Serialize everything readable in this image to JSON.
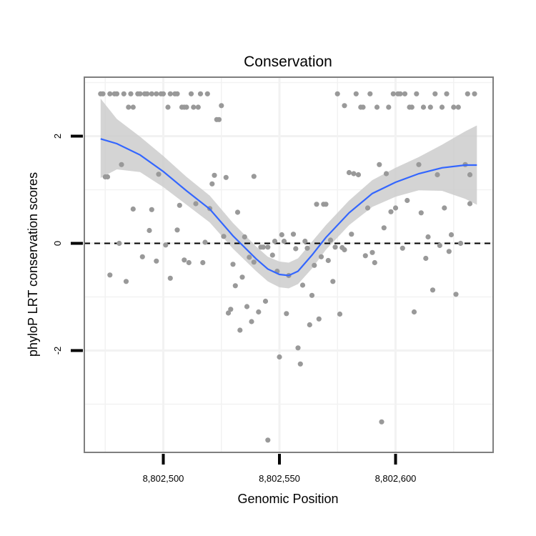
{
  "chart_data": {
    "type": "scatter",
    "title": "Conservation",
    "xlabel": "Genomic Position",
    "ylabel": "phyloP LRT conservation scores",
    "xlim": [
      8802466,
      8802642
    ],
    "ylim": [
      -3.9,
      3.1
    ],
    "x_ticks": [
      8802500,
      8802550,
      8802600
    ],
    "x_tick_labels": [
      "8,802,500",
      "8,802,550",
      "8,802,600"
    ],
    "y_ticks": [
      2,
      0,
      -2
    ],
    "y_tick_labels": [
      "2",
      "0",
      "-2"
    ],
    "grid": true,
    "reference_line": {
      "y": 0,
      "style": "dashed",
      "color": "#000000"
    },
    "colors": {
      "points": "#999999",
      "smooth_line": "#3366FF",
      "confidence_band": "#CCCCCC",
      "grid": "#F2F2F2",
      "panel_border": "#7F7F7F"
    },
    "points": [
      {
        "x": 8802473,
        "y": 2.79
      },
      {
        "x": 8802474,
        "y": 2.79
      },
      {
        "x": 8802475,
        "y": 1.24
      },
      {
        "x": 8802476,
        "y": 1.24
      },
      {
        "x": 8802477,
        "y": 2.79
      },
      {
        "x": 8802477,
        "y": -0.59
      },
      {
        "x": 8802479,
        "y": 2.79
      },
      {
        "x": 8802480,
        "y": 2.79
      },
      {
        "x": 8802481,
        "y": 0.0
      },
      {
        "x": 8802482,
        "y": 1.47
      },
      {
        "x": 8802483,
        "y": 2.79
      },
      {
        "x": 8802484,
        "y": -0.71
      },
      {
        "x": 8802485,
        "y": 2.54
      },
      {
        "x": 8802486,
        "y": 2.79
      },
      {
        "x": 8802487,
        "y": 2.54
      },
      {
        "x": 8802487,
        "y": 0.64
      },
      {
        "x": 8802489,
        "y": 2.79
      },
      {
        "x": 8802490,
        "y": 2.79
      },
      {
        "x": 8802491,
        "y": -0.25
      },
      {
        "x": 8802492,
        "y": 2.79
      },
      {
        "x": 8802493,
        "y": 2.79
      },
      {
        "x": 8802494,
        "y": 0.24
      },
      {
        "x": 8802495,
        "y": 2.79
      },
      {
        "x": 8802495,
        "y": 0.63
      },
      {
        "x": 8802497,
        "y": 2.79
      },
      {
        "x": 8802497,
        "y": -0.33
      },
      {
        "x": 8802498,
        "y": 1.29
      },
      {
        "x": 8802499,
        "y": 2.79
      },
      {
        "x": 8802500,
        "y": 2.79
      },
      {
        "x": 8802501,
        "y": -0.03
      },
      {
        "x": 8802502,
        "y": 2.54
      },
      {
        "x": 8802503,
        "y": 2.79
      },
      {
        "x": 8802503,
        "y": -0.65
      },
      {
        "x": 8802505,
        "y": 2.79
      },
      {
        "x": 8802506,
        "y": 2.79
      },
      {
        "x": 8802506,
        "y": 0.25
      },
      {
        "x": 8802507,
        "y": 0.71
      },
      {
        "x": 8802508,
        "y": 2.54
      },
      {
        "x": 8802509,
        "y": -0.31
      },
      {
        "x": 8802509,
        "y": 2.54
      },
      {
        "x": 8802510,
        "y": 2.54
      },
      {
        "x": 8802511,
        "y": -0.36
      },
      {
        "x": 8802512,
        "y": 2.79
      },
      {
        "x": 8802513,
        "y": 2.54
      },
      {
        "x": 8802514,
        "y": 0.74
      },
      {
        "x": 8802515,
        "y": 2.54
      },
      {
        "x": 8802516,
        "y": 2.79
      },
      {
        "x": 8802517,
        "y": -0.36
      },
      {
        "x": 8802518,
        "y": 0.02
      },
      {
        "x": 8802519,
        "y": 2.79
      },
      {
        "x": 8802520,
        "y": 0.65
      },
      {
        "x": 8802521,
        "y": 1.11
      },
      {
        "x": 8802522,
        "y": 1.27
      },
      {
        "x": 8802523,
        "y": 2.31
      },
      {
        "x": 8802524,
        "y": 2.31
      },
      {
        "x": 8802525,
        "y": 2.57
      },
      {
        "x": 8802526,
        "y": 0.13
      },
      {
        "x": 8802527,
        "y": 1.23
      },
      {
        "x": 8802528,
        "y": -1.3
      },
      {
        "x": 8802529,
        "y": -1.23
      },
      {
        "x": 8802530,
        "y": -0.39
      },
      {
        "x": 8802531,
        "y": -0.79
      },
      {
        "x": 8802532,
        "y": 0.58
      },
      {
        "x": 8802533,
        "y": -1.62
      },
      {
        "x": 8802534,
        "y": -0.63
      },
      {
        "x": 8802535,
        "y": 0.12
      },
      {
        "x": 8802536,
        "y": -1.18
      },
      {
        "x": 8802537,
        "y": -0.26
      },
      {
        "x": 8802538,
        "y": -1.46
      },
      {
        "x": 8802539,
        "y": 1.25
      },
      {
        "x": 8802539,
        "y": -0.35
      },
      {
        "x": 8802541,
        "y": -1.28
      },
      {
        "x": 8802542,
        "y": -0.07
      },
      {
        "x": 8802543,
        "y": -0.07
      },
      {
        "x": 8802544,
        "y": -1.08
      },
      {
        "x": 8802545,
        "y": -3.67
      },
      {
        "x": 8802545,
        "y": -0.07
      },
      {
        "x": 8802547,
        "y": -0.22
      },
      {
        "x": 8802548,
        "y": 0.04
      },
      {
        "x": 8802549,
        "y": -0.52
      },
      {
        "x": 8802550,
        "y": -2.12
      },
      {
        "x": 8802551,
        "y": 0.16
      },
      {
        "x": 8802552,
        "y": 0.04
      },
      {
        "x": 8802553,
        "y": -1.31
      },
      {
        "x": 8802554,
        "y": -0.6
      },
      {
        "x": 8802556,
        "y": 0.17
      },
      {
        "x": 8802557,
        "y": -0.1
      },
      {
        "x": 8802558,
        "y": -1.95
      },
      {
        "x": 8802559,
        "y": -2.25
      },
      {
        "x": 8802560,
        "y": -0.78
      },
      {
        "x": 8802561,
        "y": 0.04
      },
      {
        "x": 8802562,
        "y": -0.09
      },
      {
        "x": 8802563,
        "y": -1.52
      },
      {
        "x": 8802564,
        "y": -0.97
      },
      {
        "x": 8802565,
        "y": -0.41
      },
      {
        "x": 8802566,
        "y": 0.73
      },
      {
        "x": 8802567,
        "y": -1.41
      },
      {
        "x": 8802568,
        "y": -0.25
      },
      {
        "x": 8802569,
        "y": 0.73
      },
      {
        "x": 8802570,
        "y": 0.73
      },
      {
        "x": 8802571,
        "y": -0.32
      },
      {
        "x": 8802572,
        "y": 0.06
      },
      {
        "x": 8802573,
        "y": -0.71
      },
      {
        "x": 8802574,
        "y": -0.07
      },
      {
        "x": 8802575,
        "y": 2.79
      },
      {
        "x": 8802576,
        "y": -1.32
      },
      {
        "x": 8802577,
        "y": -0.08
      },
      {
        "x": 8802578,
        "y": -0.12
      },
      {
        "x": 8802578,
        "y": 2.57
      },
      {
        "x": 8802580,
        "y": 1.32
      },
      {
        "x": 8802581,
        "y": 0.17
      },
      {
        "x": 8802582,
        "y": 1.3
      },
      {
        "x": 8802583,
        "y": 2.79
      },
      {
        "x": 8802584,
        "y": 1.28
      },
      {
        "x": 8802585,
        "y": 2.54
      },
      {
        "x": 8802586,
        "y": 2.54
      },
      {
        "x": 8802587,
        "y": -0.23
      },
      {
        "x": 8802588,
        "y": 0.66
      },
      {
        "x": 8802589,
        "y": 2.79
      },
      {
        "x": 8802590,
        "y": -0.17
      },
      {
        "x": 8802591,
        "y": -0.36
      },
      {
        "x": 8802592,
        "y": 2.54
      },
      {
        "x": 8802593,
        "y": 1.47
      },
      {
        "x": 8802594,
        "y": -3.33
      },
      {
        "x": 8802595,
        "y": 0.29
      },
      {
        "x": 8802596,
        "y": 1.3
      },
      {
        "x": 8802597,
        "y": 2.54
      },
      {
        "x": 8802598,
        "y": 0.59
      },
      {
        "x": 8802599,
        "y": 2.79
      },
      {
        "x": 8802600,
        "y": 0.66
      },
      {
        "x": 8802601,
        "y": 2.79
      },
      {
        "x": 8802602,
        "y": 2.79
      },
      {
        "x": 8802603,
        "y": -0.09
      },
      {
        "x": 8802604,
        "y": 2.79
      },
      {
        "x": 8802605,
        "y": 0.8
      },
      {
        "x": 8802606,
        "y": 2.54
      },
      {
        "x": 8802607,
        "y": 2.54
      },
      {
        "x": 8802608,
        "y": -1.28
      },
      {
        "x": 8802609,
        "y": 2.79
      },
      {
        "x": 8802610,
        "y": 1.47
      },
      {
        "x": 8802611,
        "y": 0.57
      },
      {
        "x": 8802612,
        "y": 2.54
      },
      {
        "x": 8802613,
        "y": -0.28
      },
      {
        "x": 8802614,
        "y": 0.12
      },
      {
        "x": 8802615,
        "y": 2.54
      },
      {
        "x": 8802616,
        "y": -0.87
      },
      {
        "x": 8802617,
        "y": 2.79
      },
      {
        "x": 8802618,
        "y": 1.28
      },
      {
        "x": 8802619,
        "y": -0.04
      },
      {
        "x": 8802620,
        "y": 2.54
      },
      {
        "x": 8802621,
        "y": 0.66
      },
      {
        "x": 8802622,
        "y": 2.79
      },
      {
        "x": 8802623,
        "y": -0.15
      },
      {
        "x": 8802624,
        "y": 0.16
      },
      {
        "x": 8802625,
        "y": 2.54
      },
      {
        "x": 8802626,
        "y": -0.95
      },
      {
        "x": 8802627,
        "y": 2.54
      },
      {
        "x": 8802628,
        "y": 0.0
      },
      {
        "x": 8802630,
        "y": 1.47
      },
      {
        "x": 8802631,
        "y": 2.79
      },
      {
        "x": 8802632,
        "y": 1.28
      },
      {
        "x": 8802632,
        "y": 0.74
      },
      {
        "x": 8802634,
        "y": 2.79
      }
    ],
    "smooth": [
      {
        "x": 8802473,
        "y": 1.95
      },
      {
        "x": 8802480,
        "y": 1.86
      },
      {
        "x": 8802490,
        "y": 1.65
      },
      {
        "x": 8802500,
        "y": 1.34
      },
      {
        "x": 8802510,
        "y": 0.98
      },
      {
        "x": 8802520,
        "y": 0.64
      },
      {
        "x": 8802530,
        "y": 0.14
      },
      {
        "x": 8802540,
        "y": -0.29
      },
      {
        "x": 8802545,
        "y": -0.48
      },
      {
        "x": 8802550,
        "y": -0.58
      },
      {
        "x": 8802554,
        "y": -0.6
      },
      {
        "x": 8802558,
        "y": -0.52
      },
      {
        "x": 8802564,
        "y": -0.22
      },
      {
        "x": 8802570,
        "y": 0.11
      },
      {
        "x": 8802580,
        "y": 0.57
      },
      {
        "x": 8802590,
        "y": 0.93
      },
      {
        "x": 8802600,
        "y": 1.14
      },
      {
        "x": 8802610,
        "y": 1.3
      },
      {
        "x": 8802620,
        "y": 1.41
      },
      {
        "x": 8802630,
        "y": 1.46
      },
      {
        "x": 8802635,
        "y": 1.46
      }
    ],
    "band": [
      {
        "x": 8802473,
        "lower": 1.22,
        "upper": 2.7
      },
      {
        "x": 8802480,
        "lower": 1.38,
        "upper": 2.32
      },
      {
        "x": 8802490,
        "lower": 1.33,
        "upper": 1.99
      },
      {
        "x": 8802500,
        "lower": 1.05,
        "upper": 1.63
      },
      {
        "x": 8802510,
        "lower": 0.72,
        "upper": 1.24
      },
      {
        "x": 8802520,
        "lower": 0.39,
        "upper": 0.89
      },
      {
        "x": 8802530,
        "lower": -0.1,
        "upper": 0.38
      },
      {
        "x": 8802540,
        "lower": -0.52,
        "upper": -0.06
      },
      {
        "x": 8802545,
        "lower": -0.71,
        "upper": -0.25
      },
      {
        "x": 8802550,
        "lower": -0.82,
        "upper": -0.34
      },
      {
        "x": 8802554,
        "lower": -0.84,
        "upper": -0.36
      },
      {
        "x": 8802558,
        "lower": -0.76,
        "upper": -0.28
      },
      {
        "x": 8802564,
        "lower": -0.47,
        "upper": 0.03
      },
      {
        "x": 8802570,
        "lower": -0.12,
        "upper": 0.34
      },
      {
        "x": 8802580,
        "lower": 0.34,
        "upper": 0.8
      },
      {
        "x": 8802590,
        "lower": 0.68,
        "upper": 1.18
      },
      {
        "x": 8802600,
        "lower": 0.87,
        "upper": 1.41
      },
      {
        "x": 8802610,
        "lower": 0.99,
        "upper": 1.61
      },
      {
        "x": 8802620,
        "lower": 0.98,
        "upper": 1.84
      },
      {
        "x": 8802630,
        "lower": 0.83,
        "upper": 2.09
      },
      {
        "x": 8802635,
        "lower": 0.72,
        "upper": 2.2
      }
    ]
  }
}
